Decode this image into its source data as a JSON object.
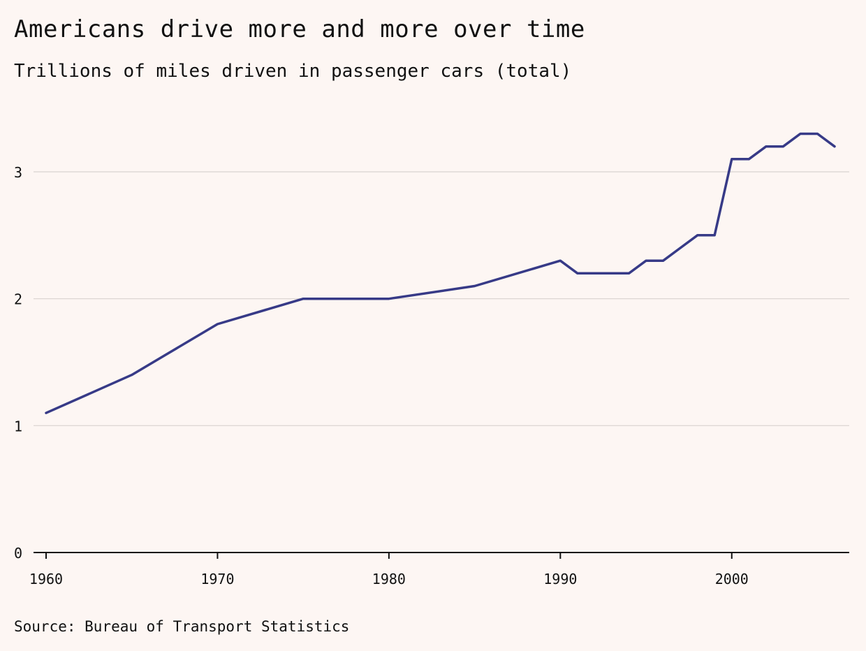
{
  "chart_data": {
    "type": "line",
    "title": "Americans drive more and more over time",
    "subtitle": "Trillions of miles driven in passenger cars (total)",
    "source": "Source: Bureau of Transport Statistics",
    "xlabel": "",
    "ylabel": "",
    "xlim": [
      1960,
      2007
    ],
    "ylim": [
      0,
      3.4
    ],
    "x_ticks": [
      1960,
      1970,
      1980,
      1990,
      2000
    ],
    "y_ticks": [
      0,
      1,
      2,
      3
    ],
    "grid": true,
    "line_color": "#373a87",
    "series": [
      {
        "x": [
          1960,
          1965,
          1970,
          1975,
          1980,
          1985,
          1990,
          1991,
          1992,
          1993,
          1994,
          1995,
          1996,
          1997,
          1998,
          1999,
          2000,
          2001,
          2002,
          2003,
          2004,
          2005,
          2006
        ],
        "values": [
          1.1,
          1.4,
          1.8,
          2.0,
          2.0,
          2.1,
          2.3,
          2.2,
          2.2,
          2.2,
          2.2,
          2.3,
          2.3,
          2.4,
          2.5,
          2.5,
          3.1,
          3.1,
          3.2,
          3.2,
          3.3,
          3.3,
          3.2
        ]
      }
    ]
  }
}
